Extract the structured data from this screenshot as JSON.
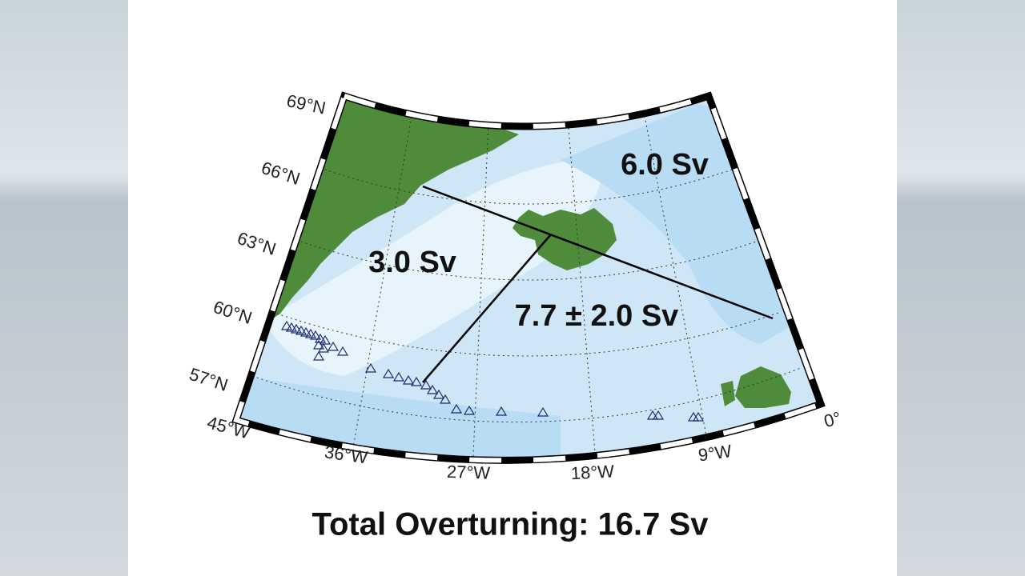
{
  "map": {
    "lat_labels": [
      "69°N",
      "66°N",
      "63°N",
      "60°N",
      "57°N"
    ],
    "lon_labels": [
      "45°W",
      "36°W",
      "27°W",
      "18°W",
      "9°W",
      "0°"
    ],
    "transports": [
      "6.0 Sv",
      "3.0 Sv",
      "7.7 ± 2.0 Sv"
    ],
    "caption": "Total Overturning: 16.7 Sv"
  }
}
